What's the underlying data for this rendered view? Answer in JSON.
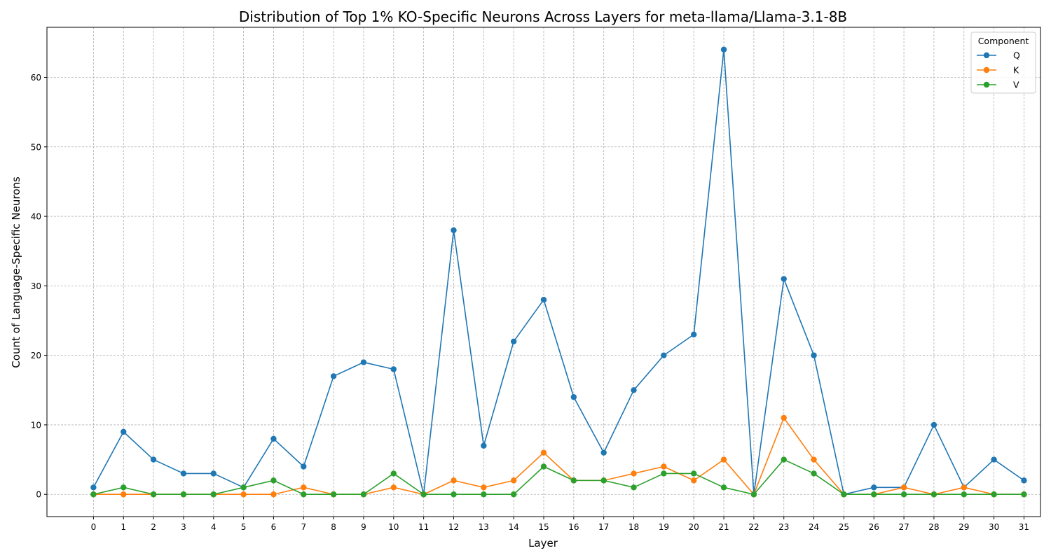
{
  "chart_data": {
    "type": "line",
    "title": "Distribution of Top 1% KO-Specific Neurons Across Layers for meta-llama/Llama-3.1-8B",
    "xlabel": "Layer",
    "ylabel": "Count of Language-Specific Neurons",
    "x": [
      0,
      1,
      2,
      3,
      4,
      5,
      6,
      7,
      8,
      9,
      10,
      11,
      12,
      13,
      14,
      15,
      16,
      17,
      18,
      19,
      20,
      21,
      22,
      23,
      24,
      25,
      26,
      27,
      28,
      29,
      30,
      31
    ],
    "xlim": [
      -1.55,
      31.55
    ],
    "ylim": [
      -3.2,
      67.2
    ],
    "yticks": [
      0,
      10,
      20,
      30,
      40,
      50,
      60
    ],
    "grid": true,
    "legend": {
      "title": "Component",
      "placement": "top-right"
    },
    "series": [
      {
        "name": "Q",
        "color": "#1f77b4",
        "values": [
          1,
          9,
          5,
          3,
          3,
          1,
          8,
          4,
          17,
          19,
          18,
          0,
          38,
          7,
          22,
          28,
          14,
          6,
          15,
          20,
          23,
          64,
          0,
          31,
          20,
          0,
          1,
          1,
          10,
          1,
          5,
          2
        ]
      },
      {
        "name": "K",
        "color": "#ff7f0e",
        "values": [
          0,
          0,
          0,
          0,
          0,
          0,
          0,
          1,
          0,
          0,
          1,
          0,
          2,
          1,
          2,
          6,
          2,
          2,
          3,
          4,
          2,
          5,
          0,
          11,
          5,
          0,
          0,
          1,
          0,
          1,
          0,
          0
        ]
      },
      {
        "name": "V",
        "color": "#2ca02c",
        "values": [
          0,
          1,
          0,
          0,
          0,
          1,
          2,
          0,
          0,
          0,
          3,
          0,
          0,
          0,
          0,
          4,
          2,
          2,
          1,
          3,
          3,
          1,
          0,
          5,
          3,
          0,
          0,
          0,
          0,
          0,
          0,
          0
        ]
      }
    ]
  }
}
